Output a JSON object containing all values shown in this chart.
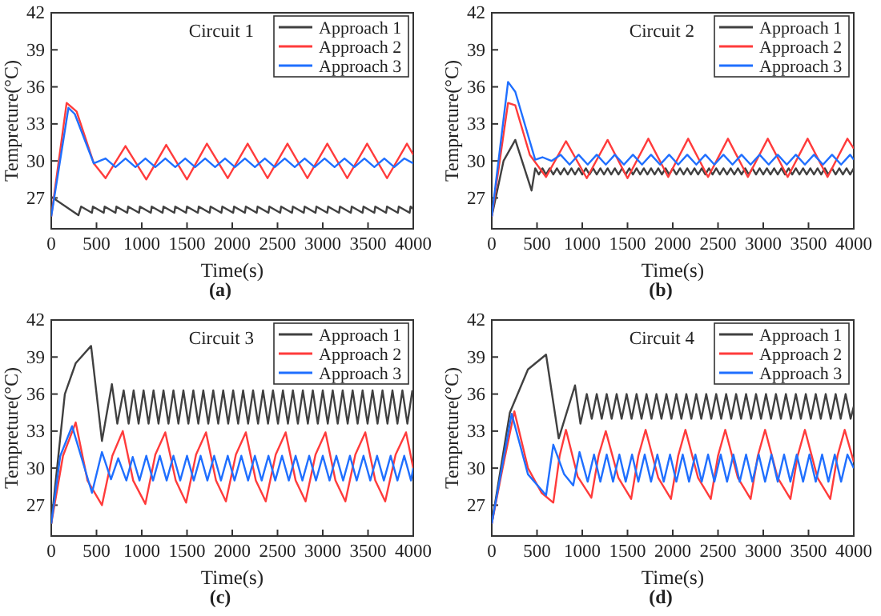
{
  "chart_data": [
    {
      "type": "line",
      "title": "Circuit 1",
      "xlabel": "Time(s)",
      "ylabel": "Tempreture(°C)",
      "annotations": [
        "(a)"
      ],
      "xlim": [
        0,
        4000
      ],
      "xticks": [
        0,
        500,
        1000,
        1500,
        2000,
        2500,
        3000,
        3500,
        4000
      ],
      "ylim": [
        24.5,
        42
      ],
      "yticks": [
        27,
        30,
        33,
        36,
        39,
        42
      ],
      "grid": false,
      "legend": "top right",
      "marker": "none",
      "line_style": "solid",
      "series": [
        {
          "name": "Approach 1",
          "color": "#404040",
          "x": [
            0,
            300,
            330,
            450,
            460,
            580,
            590,
            710,
            720,
            840,
            850,
            970,
            980,
            1100,
            1110,
            1230,
            1240,
            1360,
            1370,
            1490,
            1500,
            1620,
            1630,
            1750,
            1760,
            1880,
            1890,
            2010,
            2020,
            2140,
            2150,
            2270,
            2280,
            2400,
            2410,
            2530,
            2540,
            2660,
            2670,
            2790,
            2800,
            2920,
            2930,
            3050,
            3060,
            3180,
            3190,
            3310,
            3320,
            3440,
            3450,
            3570,
            3580,
            3700,
            3710,
            3830,
            3840,
            3960,
            3970,
            4000
          ],
          "values": [
            27.1,
            25.6,
            26.3,
            25.8,
            26.3,
            25.8,
            26.3,
            25.8,
            26.3,
            25.8,
            26.3,
            25.8,
            26.3,
            25.8,
            26.3,
            25.8,
            26.3,
            25.8,
            26.3,
            25.8,
            26.3,
            25.8,
            26.3,
            25.8,
            26.3,
            25.8,
            26.3,
            25.8,
            26.3,
            25.8,
            26.3,
            25.8,
            26.3,
            25.8,
            26.3,
            25.8,
            26.3,
            25.8,
            26.3,
            25.8,
            26.3,
            25.8,
            26.3,
            25.8,
            26.3,
            25.8,
            26.3,
            25.8,
            26.3,
            25.8,
            26.3,
            25.8,
            26.3,
            25.8,
            26.3,
            25.8,
            26.3,
            25.8,
            26.3,
            26.1
          ]
        },
        {
          "name": "Approach 2",
          "color": "#ff3b3b",
          "x": [
            0,
            170,
            280,
            470,
            600,
            820,
            1050,
            1270,
            1500,
            1720,
            1950,
            2170,
            2390,
            2610,
            2830,
            3050,
            3270,
            3490,
            3710,
            3930,
            4000
          ],
          "values": [
            25.5,
            34.7,
            34,
            29.8,
            28.6,
            31.2,
            28.5,
            31.3,
            28.5,
            31.4,
            28.6,
            31.4,
            28.6,
            31.4,
            28.6,
            31.4,
            28.6,
            31.4,
            28.6,
            31.4,
            30.5
          ]
        },
        {
          "name": "Approach 3",
          "color": "#1f6fff",
          "x": [
            0,
            190,
            260,
            470,
            600,
            710,
            820,
            930,
            1040,
            1150,
            1260,
            1370,
            1480,
            1590,
            1700,
            1810,
            1920,
            2030,
            2140,
            2250,
            2360,
            2470,
            2580,
            2690,
            2800,
            2910,
            3020,
            3130,
            3240,
            3350,
            3460,
            3570,
            3680,
            3790,
            3900,
            4000
          ],
          "values": [
            25.5,
            34.3,
            33.8,
            29.8,
            30.2,
            29.5,
            30.2,
            29.5,
            30.2,
            29.5,
            30.2,
            29.5,
            30.2,
            29.5,
            30.2,
            29.5,
            30.2,
            29.5,
            30.2,
            29.5,
            30.2,
            29.5,
            30.2,
            29.5,
            30.2,
            29.5,
            30.2,
            29.5,
            30.2,
            29.5,
            30.2,
            29.5,
            30.2,
            29.5,
            30.2,
            29.8
          ]
        }
      ]
    },
    {
      "type": "line",
      "title": "Circuit 2",
      "xlabel": "Time(s)",
      "ylabel": "Tempreture(°C)",
      "annotations": [
        "(b)"
      ],
      "xlim": [
        0,
        4000
      ],
      "xticks": [
        0,
        500,
        1000,
        1500,
        2000,
        2500,
        3000,
        3500,
        4000
      ],
      "ylim": [
        24.5,
        42
      ],
      "yticks": [
        27,
        30,
        33,
        36,
        39,
        42
      ],
      "grid": false,
      "legend": "top right",
      "marker": "none",
      "line_style": "solid",
      "series": [
        {
          "name": "Approach 1",
          "color": "#404040",
          "x": [
            0,
            130,
            260,
            440,
            480,
            520,
            560,
            600,
            640,
            680,
            720,
            760,
            800,
            840,
            880,
            920,
            960,
            1000,
            1040,
            1080,
            1120,
            1160,
            1200,
            1240,
            1280,
            1320,
            1360,
            1400,
            1440,
            1480,
            1520,
            1560,
            1600,
            1640,
            1680,
            1720,
            1760,
            1800,
            1840,
            1880,
            1920,
            1960,
            2000,
            2040,
            2080,
            2120,
            2160,
            2200,
            2240,
            2280,
            2320,
            2360,
            2400,
            2440,
            2480,
            2520,
            2560,
            2600,
            2640,
            2680,
            2720,
            2760,
            2800,
            2840,
            2880,
            2920,
            2960,
            3000,
            3040,
            3080,
            3120,
            3160,
            3200,
            3240,
            3280,
            3320,
            3360,
            3400,
            3440,
            3480,
            3520,
            3560,
            3600,
            3640,
            3680,
            3720,
            3760,
            3800,
            3840,
            3880,
            3920,
            3960,
            4000
          ],
          "values": [
            25.5,
            30,
            31.7,
            27.6,
            29.4,
            28.9,
            29.4,
            28.9,
            29.4,
            28.9,
            29.4,
            28.9,
            29.4,
            28.9,
            29.4,
            28.9,
            29.4,
            28.9,
            29.4,
            28.9,
            29.4,
            28.9,
            29.4,
            28.9,
            29.4,
            28.9,
            29.4,
            28.9,
            29.4,
            28.9,
            29.4,
            28.9,
            29.4,
            28.9,
            29.4,
            28.9,
            29.4,
            28.9,
            29.4,
            28.9,
            29.4,
            28.9,
            29.4,
            28.9,
            29.4,
            28.9,
            29.4,
            28.9,
            29.4,
            28.9,
            29.4,
            28.9,
            29.4,
            28.9,
            29.4,
            28.9,
            29.4,
            28.9,
            29.4,
            28.9,
            29.4,
            28.9,
            29.4,
            28.9,
            29.4,
            28.9,
            29.4,
            28.9,
            29.4,
            28.9,
            29.4,
            28.9,
            29.4,
            28.9,
            29.4,
            28.9,
            29.4,
            28.9,
            29.4,
            28.9,
            29.4,
            28.9,
            29.4,
            28.9,
            29.4,
            28.9,
            29.4,
            28.9,
            29.4,
            28.9,
            29.4,
            28.9,
            29.4
          ]
        },
        {
          "name": "Approach 2",
          "color": "#ff3b3b",
          "x": [
            0,
            180,
            260,
            420,
            600,
            820,
            1050,
            1280,
            1500,
            1730,
            1950,
            2170,
            2390,
            2610,
            2830,
            3050,
            3270,
            3490,
            3710,
            3930,
            4000
          ],
          "values": [
            25.5,
            34.7,
            34.5,
            30.5,
            28.7,
            31.6,
            28.6,
            31.7,
            28.6,
            31.8,
            28.7,
            31.8,
            28.7,
            31.8,
            28.7,
            31.8,
            28.7,
            31.8,
            28.7,
            31.8,
            31
          ]
        },
        {
          "name": "Approach 3",
          "color": "#1f6fff",
          "x": [
            0,
            180,
            260,
            480,
            560,
            660,
            760,
            860,
            960,
            1060,
            1160,
            1260,
            1360,
            1460,
            1560,
            1660,
            1760,
            1860,
            1960,
            2060,
            2160,
            2260,
            2360,
            2460,
            2560,
            2660,
            2760,
            2860,
            2960,
            3060,
            3160,
            3260,
            3360,
            3460,
            3560,
            3660,
            3760,
            3860,
            3960,
            4000
          ],
          "values": [
            25.5,
            36.4,
            35.6,
            30.1,
            30.3,
            30,
            30.5,
            29.7,
            30.5,
            29.7,
            30.5,
            29.7,
            30.5,
            29.7,
            30.5,
            29.7,
            30.5,
            29.7,
            30.5,
            29.7,
            30.5,
            29.7,
            30.5,
            29.7,
            30.5,
            29.7,
            30.5,
            29.7,
            30.5,
            29.7,
            30.5,
            29.7,
            30.5,
            29.7,
            30.5,
            29.7,
            30.5,
            29.7,
            30.5,
            30.1
          ]
        }
      ]
    },
    {
      "type": "line",
      "title": "Circuit 3",
      "xlabel": "Time(s)",
      "ylabel": "Tempreture(°C)",
      "annotations": [
        "(c)"
      ],
      "xlim": [
        0,
        4000
      ],
      "xticks": [
        0,
        500,
        1000,
        1500,
        2000,
        2500,
        3000,
        3500,
        4000
      ],
      "ylim": [
        24.5,
        42
      ],
      "yticks": [
        27,
        30,
        33,
        36,
        39,
        42
      ],
      "grid": false,
      "legend": "top right",
      "marker": "none",
      "line_style": "solid",
      "series": [
        {
          "name": "Approach 1",
          "color": "#404040",
          "x": [
            0,
            150,
            270,
            440,
            560,
            670,
            730,
            800,
            855,
            910,
            965,
            1020,
            1075,
            1130,
            1185,
            1240,
            1295,
            1350,
            1405,
            1460,
            1515,
            1570,
            1625,
            1680,
            1735,
            1790,
            1845,
            1900,
            1955,
            2010,
            2065,
            2120,
            2175,
            2230,
            2285,
            2340,
            2395,
            2450,
            2505,
            2560,
            2615,
            2670,
            2725,
            2780,
            2835,
            2890,
            2945,
            3000,
            3055,
            3110,
            3165,
            3220,
            3275,
            3330,
            3385,
            3440,
            3495,
            3550,
            3605,
            3660,
            3715,
            3770,
            3825,
            3880,
            3935,
            3990
          ],
          "values": [
            25.5,
            36,
            38.5,
            39.9,
            32.2,
            36.8,
            33.6,
            36.3,
            33.6,
            36.3,
            33.6,
            36.3,
            33.6,
            36.3,
            33.6,
            36.3,
            33.6,
            36.3,
            33.6,
            36.3,
            33.6,
            36.3,
            33.6,
            36.3,
            33.6,
            36.3,
            33.6,
            36.3,
            33.6,
            36.3,
            33.6,
            36.3,
            33.6,
            36.3,
            33.6,
            36.3,
            33.6,
            36.3,
            33.6,
            36.3,
            33.6,
            36.3,
            33.6,
            36.3,
            33.6,
            36.3,
            33.6,
            36.3,
            33.6,
            36.3,
            33.6,
            36.3,
            33.6,
            36.3,
            33.6,
            36.3,
            33.6,
            36.3,
            33.6,
            36.3,
            33.6,
            36.3,
            33.6,
            36.3,
            33.6,
            36.3
          ]
        },
        {
          "name": "Approach 2",
          "color": "#ff3b3b",
          "x": [
            0,
            130,
            270,
            400,
            560,
            675,
            790,
            905,
            1040,
            1150,
            1260,
            1375,
            1490,
            1600,
            1710,
            1820,
            1930,
            2040,
            2150,
            2260,
            2370,
            2480,
            2590,
            2700,
            2810,
            2920,
            3030,
            3140,
            3250,
            3360,
            3470,
            3580,
            3690,
            3805,
            3920,
            4000
          ],
          "values": [
            25.5,
            31,
            33.7,
            29,
            27,
            31,
            33,
            29,
            27.1,
            31.1,
            32.9,
            29,
            27.2,
            31.1,
            32.9,
            29,
            27.3,
            31.1,
            32.9,
            29,
            27.3,
            31.1,
            32.9,
            29,
            27.3,
            31.1,
            32.9,
            29,
            27.3,
            31.1,
            32.9,
            29,
            27.3,
            31.1,
            32.9,
            30
          ]
        },
        {
          "name": "Approach 3",
          "color": "#1f6fff",
          "x": [
            0,
            100,
            230,
            450,
            560,
            660,
            740,
            830,
            900,
            975,
            1050,
            1125,
            1200,
            1275,
            1350,
            1425,
            1500,
            1575,
            1650,
            1725,
            1800,
            1875,
            1950,
            2025,
            2100,
            2175,
            2250,
            2325,
            2400,
            2475,
            2550,
            2625,
            2700,
            2775,
            2850,
            2925,
            3000,
            3075,
            3150,
            3225,
            3300,
            3375,
            3450,
            3525,
            3600,
            3675,
            3750,
            3825,
            3900,
            3975,
            4000
          ],
          "values": [
            25.5,
            31,
            33.4,
            28,
            31.3,
            29.1,
            30.8,
            29,
            30.9,
            29,
            31,
            29,
            31,
            29,
            31,
            29,
            31,
            29,
            31,
            29,
            31,
            29,
            31,
            29,
            31,
            29,
            31,
            29,
            31,
            29,
            31,
            29,
            31,
            29,
            31,
            29,
            31,
            29,
            31,
            29,
            31,
            29,
            31,
            29,
            31,
            29,
            31,
            29,
            31,
            29,
            30
          ]
        }
      ]
    },
    {
      "type": "line",
      "title": "Circuit 4",
      "xlabel": "Time(s)",
      "ylabel": "Tempreture(°C)",
      "annotations": [
        "(d)"
      ],
      "xlim": [
        0,
        4000
      ],
      "xticks": [
        0,
        500,
        1000,
        1500,
        2000,
        2500,
        3000,
        3500,
        4000
      ],
      "ylim": [
        24.5,
        42
      ],
      "yticks": [
        27,
        30,
        33,
        36,
        39,
        42
      ],
      "grid": false,
      "legend": "top right",
      "marker": "none",
      "line_style": "solid",
      "series": [
        {
          "name": "Approach 1",
          "color": "#404040",
          "x": [
            0,
            200,
            400,
            600,
            740,
            920,
            980,
            1050,
            1105,
            1160,
            1215,
            1270,
            1325,
            1380,
            1435,
            1490,
            1545,
            1600,
            1655,
            1710,
            1765,
            1820,
            1875,
            1930,
            1985,
            2040,
            2095,
            2150,
            2205,
            2260,
            2315,
            2370,
            2425,
            2480,
            2535,
            2590,
            2645,
            2700,
            2755,
            2810,
            2865,
            2920,
            2975,
            3030,
            3085,
            3140,
            3195,
            3250,
            3305,
            3360,
            3415,
            3470,
            3525,
            3580,
            3635,
            3690,
            3745,
            3800,
            3855,
            3910,
            3965,
            4000
          ],
          "values": [
            25.5,
            34.5,
            38,
            39.2,
            32.4,
            36.7,
            33.6,
            36,
            34,
            36,
            34,
            36,
            34,
            36,
            34,
            36,
            34,
            36,
            34,
            36,
            34,
            36,
            34,
            36,
            34,
            36,
            34,
            36,
            34,
            36,
            34,
            36,
            34,
            36,
            34,
            36,
            34,
            36,
            34,
            36,
            34,
            36,
            34,
            36,
            34,
            36,
            34,
            36,
            34,
            36,
            34,
            36,
            34,
            36,
            34,
            36,
            34,
            36,
            34,
            36,
            34,
            35
          ]
        },
        {
          "name": "Approach 2",
          "color": "#ff3b3b",
          "x": [
            0,
            120,
            250,
            400,
            550,
            680,
            750,
            820,
            950,
            1100,
            1180,
            1260,
            1400,
            1540,
            1620,
            1700,
            1840,
            1980,
            2060,
            2140,
            2280,
            2420,
            2500,
            2580,
            2720,
            2860,
            2940,
            3020,
            3160,
            3300,
            3380,
            3460,
            3600,
            3740,
            3820,
            3900,
            4000
          ],
          "values": [
            25.5,
            30,
            34.6,
            30,
            28,
            27.2,
            31,
            33.1,
            29.3,
            27.6,
            31,
            33,
            29.2,
            27.5,
            31,
            33.1,
            29.2,
            27.5,
            31,
            33.1,
            29.2,
            27.5,
            31,
            33.1,
            29.2,
            27.5,
            31,
            33.1,
            29.2,
            27.5,
            31,
            33.1,
            29.2,
            27.5,
            31,
            33.1,
            30.5
          ]
        },
        {
          "name": "Approach 3",
          "color": "#1f6fff",
          "x": [
            0,
            220,
            400,
            600,
            680,
            800,
            900,
            970,
            1060,
            1130,
            1200,
            1270,
            1340,
            1410,
            1480,
            1550,
            1620,
            1690,
            1760,
            1830,
            1900,
            1970,
            2040,
            2110,
            2180,
            2250,
            2320,
            2390,
            2460,
            2530,
            2600,
            2670,
            2740,
            2810,
            2880,
            2950,
            3020,
            3090,
            3160,
            3230,
            3300,
            3370,
            3440,
            3510,
            3580,
            3650,
            3720,
            3790,
            3860,
            3930,
            4000
          ],
          "values": [
            25.5,
            34.4,
            29.5,
            27.8,
            31.9,
            29.5,
            28.6,
            31.3,
            28.9,
            31.1,
            28.9,
            31.1,
            28.9,
            31.1,
            28.9,
            31.1,
            28.9,
            31.1,
            28.9,
            31.1,
            28.9,
            31.1,
            28.9,
            31.1,
            28.9,
            31.1,
            28.9,
            31.1,
            28.9,
            31.1,
            28.9,
            31.1,
            28.9,
            31.1,
            28.9,
            31.1,
            28.9,
            31.1,
            28.9,
            31.1,
            28.9,
            31.1,
            28.9,
            31.1,
            28.9,
            31.1,
            28.9,
            31.1,
            28.9,
            31.1,
            30
          ]
        }
      ]
    }
  ]
}
